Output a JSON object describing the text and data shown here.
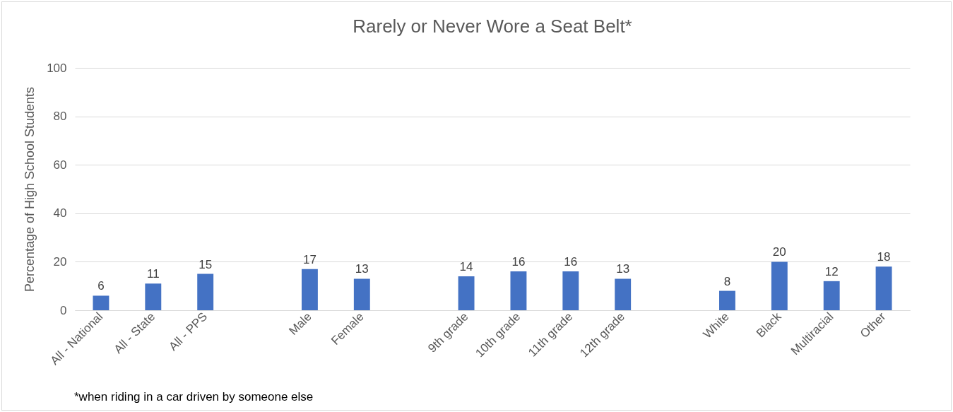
{
  "chart_data": {
    "type": "bar",
    "title": "Rarely or Never Wore a Seat Belt*",
    "ylabel": "Percentage of High School Students",
    "categories": [
      "All - National",
      "All - State",
      "All - PPS",
      null,
      "Male",
      "Female",
      null,
      "9th grade",
      "10th grade",
      "11th grade",
      "12th grade",
      null,
      "White",
      "Black",
      "Multiracial",
      "Other"
    ],
    "values": [
      6,
      11,
      15,
      null,
      17,
      13,
      null,
      14,
      16,
      16,
      13,
      null,
      8,
      20,
      12,
      18
    ],
    "color": "#4472c4",
    "ylim": [
      0,
      100
    ],
    "yticks": [
      0,
      20,
      40,
      60,
      80,
      100
    ],
    "grid": "y",
    "data_labels": true,
    "annotations": [
      "*when riding in a car driven by someone else"
    ]
  }
}
